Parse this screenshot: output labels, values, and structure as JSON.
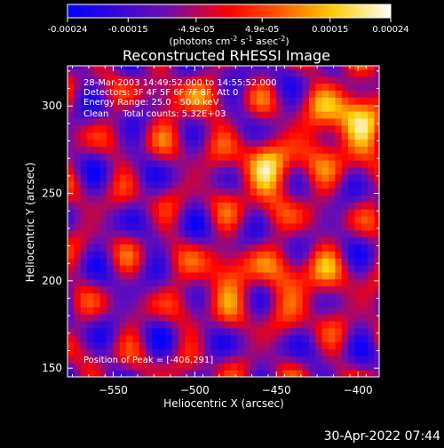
{
  "colorbar": {
    "tick_labels": [
      "-0.00024",
      "-0.00015",
      "-4.9e-05",
      "4.9e-05",
      "0.00015",
      "0.00024"
    ],
    "tick_values": [
      -0.00024,
      -0.00015,
      -4.9e-05,
      4.9e-05,
      0.00015,
      0.00024
    ],
    "range": [
      -0.00024,
      0.00024
    ],
    "units": "(photons cm",
    "units_sup1": "-2",
    "units_mid": " s",
    "units_sup2": "-1",
    "units_mid2": " asec",
    "units_sup3": "-2",
    "units_end": ")",
    "colors": [
      "#0000ff",
      "#6a0db4",
      "#ff0000",
      "#ff8800",
      "#ffff00",
      "#ffffff"
    ]
  },
  "chart_data": {
    "type": "heatmap",
    "title": "Reconstructed RHESSI Image",
    "xlabel": "Heliocentric X (arcsec)",
    "ylabel": "Heliocentric Y (arcsec)",
    "xlim": [
      -578,
      -387
    ],
    "ylim": [
      145,
      323
    ],
    "xticks": [
      -550,
      -500,
      -450,
      -400
    ],
    "xtick_labels": [
      "−550",
      "−500",
      "−450",
      "−400"
    ],
    "yticks": [
      150,
      200,
      250,
      300
    ],
    "ytick_labels": [
      "150",
      "200",
      "250",
      "300"
    ],
    "peak": [
      -406,
      291
    ],
    "annotations": [
      "28-Mar-2003 14:49:52.000 to 14:55:52.000",
      "Detectors: 3F 4F 5F 6F 7F 8F, Att 0",
      "Energy Range: 25.0 - 50.0 keV",
      "Clean     Total counts: 5.32E+03"
    ],
    "peak_label": "Position of Peak = [-406,291]",
    "grid": false
  },
  "footer": {
    "date": "30-Apr-2022 07:44"
  }
}
